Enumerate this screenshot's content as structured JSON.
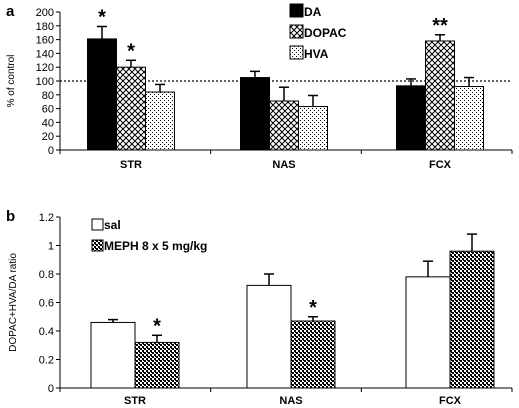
{
  "chart_data": [
    {
      "panel_label": "a",
      "type": "bar",
      "ylabel": "% of control",
      "ylim": [
        0,
        200
      ],
      "yticks": [
        0,
        20,
        40,
        60,
        80,
        100,
        120,
        140,
        160,
        180,
        200
      ],
      "reference_line": 100,
      "categories": [
        "STR",
        "NAS",
        "FCX"
      ],
      "legend_position": "top-center",
      "series": [
        {
          "name": "DA",
          "pattern": "solid",
          "values": [
            161,
            105,
            93
          ],
          "errors": [
            18,
            9,
            10
          ]
        },
        {
          "name": "DOPAC",
          "pattern": "crosshatch",
          "values": [
            120,
            71,
            158
          ],
          "errors": [
            10,
            20,
            9
          ]
        },
        {
          "name": "HVA",
          "pattern": "dots",
          "values": [
            84,
            63,
            92
          ],
          "errors": [
            11,
            16,
            13
          ]
        }
      ],
      "annotations": [
        {
          "text": "*",
          "category": "STR",
          "series": "DA"
        },
        {
          "text": "*",
          "category": "STR",
          "series": "DOPAC"
        },
        {
          "text": "**",
          "category": "FCX",
          "series": "DOPAC"
        }
      ]
    },
    {
      "panel_label": "b",
      "type": "bar",
      "ylabel": "DOPAC+HVA/DA ratio",
      "ylim": [
        0,
        1.2
      ],
      "yticks": [
        "0",
        "0.2",
        "0.4",
        "0.6",
        "0.8",
        "1",
        "1.2"
      ],
      "categories": [
        "STR",
        "NAS",
        "FCX"
      ],
      "legend_position": "top-left",
      "series": [
        {
          "name": "sal",
          "pattern": "open",
          "values": [
            0.46,
            0.72,
            0.78
          ],
          "errors": [
            0.02,
            0.08,
            0.11
          ]
        },
        {
          "name": "MEPH 8 x 5 mg/kg",
          "pattern": "dense-dots",
          "values": [
            0.32,
            0.47,
            0.96
          ],
          "errors": [
            0.05,
            0.03,
            0.12
          ]
        }
      ],
      "annotations": [
        {
          "text": "*",
          "category": "STR",
          "series": "MEPH 8 x 5 mg/kg"
        },
        {
          "text": "*",
          "category": "NAS",
          "series": "MEPH 8 x 5 mg/kg"
        }
      ]
    }
  ]
}
